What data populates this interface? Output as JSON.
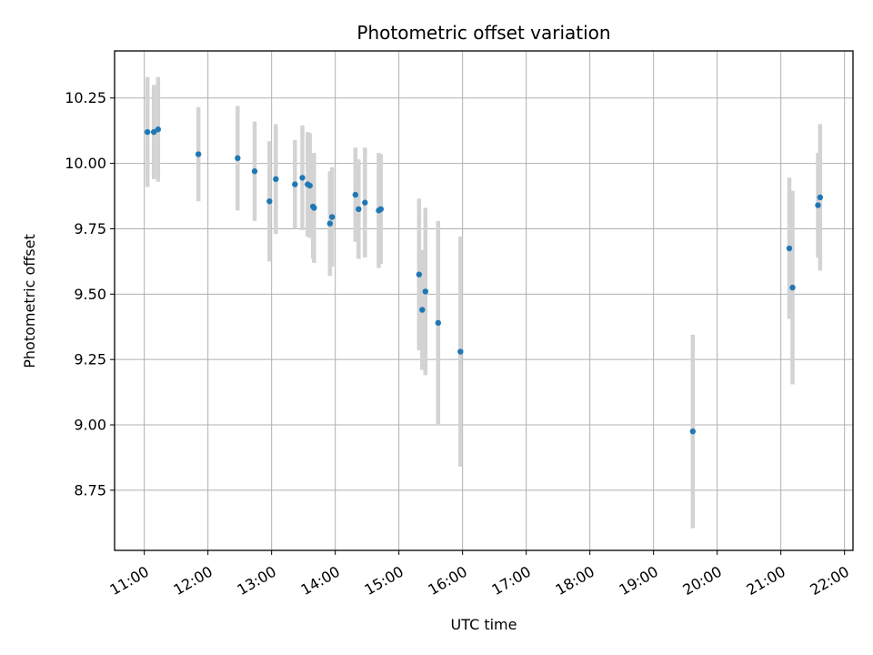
{
  "chart_data": {
    "type": "scatter",
    "title": "Photometric offset variation",
    "xlabel": "UTC time",
    "ylabel": "Photometric offset",
    "xlim": [
      "10:32",
      "22:08"
    ],
    "ylim": [
      8.52,
      10.43
    ],
    "x_ticks": [
      "11:00",
      "12:00",
      "13:00",
      "14:00",
      "15:00",
      "16:00",
      "17:00",
      "18:00",
      "19:00",
      "20:00",
      "21:00",
      "22:00"
    ],
    "y_ticks": [
      "8.75",
      "9.00",
      "9.25",
      "9.50",
      "9.75",
      "10.00",
      "10.25"
    ],
    "grid": true,
    "marker_color": "#1f77b4",
    "errorbar_color": "#d3d3d3",
    "points": [
      {
        "x": "11:03",
        "y": 10.12,
        "err": 0.21
      },
      {
        "x": "11:09",
        "y": 10.12,
        "err": 0.18
      },
      {
        "x": "11:13",
        "y": 10.13,
        "err": 0.2
      },
      {
        "x": "11:51",
        "y": 10.035,
        "err": 0.18
      },
      {
        "x": "12:28",
        "y": 10.02,
        "err": 0.2
      },
      {
        "x": "12:44",
        "y": 9.97,
        "err": 0.19
      },
      {
        "x": "12:58",
        "y": 9.855,
        "err": 0.23
      },
      {
        "x": "13:04",
        "y": 9.94,
        "err": 0.21
      },
      {
        "x": "13:22",
        "y": 9.92,
        "err": 0.17
      },
      {
        "x": "13:29",
        "y": 9.945,
        "err": 0.2
      },
      {
        "x": "13:34",
        "y": 9.92,
        "err": 0.2
      },
      {
        "x": "13:36",
        "y": 9.915,
        "err": 0.2
      },
      {
        "x": "13:39",
        "y": 9.835,
        "err": 0.2
      },
      {
        "x": "13:40",
        "y": 9.83,
        "err": 0.21
      },
      {
        "x": "13:55",
        "y": 9.77,
        "err": 0.2
      },
      {
        "x": "13:57",
        "y": 9.795,
        "err": 0.19
      },
      {
        "x": "14:19",
        "y": 9.88,
        "err": 0.18
      },
      {
        "x": "14:22",
        "y": 9.825,
        "err": 0.19
      },
      {
        "x": "14:28",
        "y": 9.85,
        "err": 0.21
      },
      {
        "x": "14:41",
        "y": 9.82,
        "err": 0.22
      },
      {
        "x": "14:43",
        "y": 9.825,
        "err": 0.21
      },
      {
        "x": "15:19",
        "y": 9.575,
        "err": 0.29
      },
      {
        "x": "15:22",
        "y": 9.44,
        "err": 0.23
      },
      {
        "x": "15:25",
        "y": 9.51,
        "err": 0.32
      },
      {
        "x": "15:37",
        "y": 9.39,
        "err": 0.39
      },
      {
        "x": "15:58",
        "y": 9.28,
        "err": 0.44
      },
      {
        "x": "19:37",
        "y": 8.975,
        "err": 0.37
      },
      {
        "x": "21:08",
        "y": 9.675,
        "err": 0.27
      },
      {
        "x": "21:11",
        "y": 9.525,
        "err": 0.37
      },
      {
        "x": "21:35",
        "y": 9.84,
        "err": 0.2
      },
      {
        "x": "21:37",
        "y": 9.87,
        "err": 0.28
      }
    ]
  }
}
